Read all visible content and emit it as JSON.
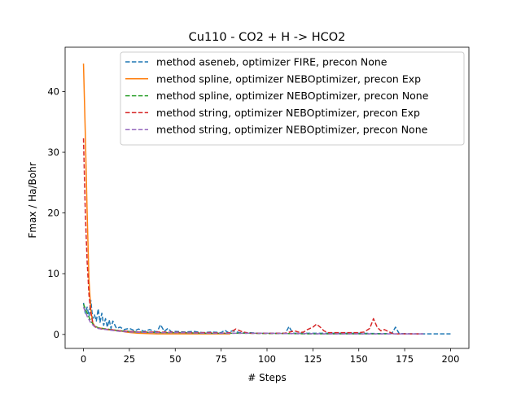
{
  "chart_data": {
    "type": "line",
    "title": "Cu110 - CO2 + H -> HCO2",
    "xlabel": "# Steps",
    "ylabel": "Fmax / Ha/Bohr",
    "xlim": [
      -10,
      210
    ],
    "ylim": [
      -2.3,
      47.3
    ],
    "x_ticks": [
      0,
      25,
      50,
      75,
      100,
      125,
      150,
      175,
      200
    ],
    "y_ticks": [
      0,
      10,
      20,
      30,
      40
    ],
    "legend_position": "top-right",
    "grid": false,
    "series": [
      {
        "name": "method aseneb, optimizer FIRE, precon None",
        "color": "#1f77b4",
        "dash": true,
        "points": [
          [
            0,
            5.2
          ],
          [
            1,
            3.5
          ],
          [
            2,
            4.5
          ],
          [
            3,
            3.0
          ],
          [
            4,
            5.6
          ],
          [
            5,
            2.6
          ],
          [
            6,
            3.2
          ],
          [
            7,
            2.2
          ],
          [
            8,
            4.2
          ],
          [
            9,
            2.0
          ],
          [
            10,
            3.5
          ],
          [
            11,
            1.5
          ],
          [
            12,
            2.6
          ],
          [
            13,
            1.2
          ],
          [
            14,
            2.4
          ],
          [
            15,
            1.0
          ],
          [
            16,
            2.2
          ],
          [
            18,
            1.0
          ],
          [
            20,
            1.2
          ],
          [
            22,
            0.8
          ],
          [
            25,
            1.0
          ],
          [
            28,
            0.6
          ],
          [
            30,
            0.9
          ],
          [
            33,
            0.5
          ],
          [
            36,
            0.8
          ],
          [
            40,
            0.4
          ],
          [
            42,
            1.6
          ],
          [
            44,
            0.5
          ],
          [
            46,
            1.0
          ],
          [
            48,
            0.4
          ],
          [
            50,
            0.5
          ],
          [
            55,
            0.4
          ],
          [
            60,
            0.5
          ],
          [
            65,
            0.3
          ],
          [
            70,
            0.4
          ],
          [
            75,
            0.3
          ],
          [
            77,
            0.7
          ],
          [
            79,
            0.3
          ],
          [
            81,
            0.6
          ],
          [
            85,
            0.3
          ],
          [
            90,
            0.3
          ],
          [
            95,
            0.2
          ],
          [
            100,
            0.2
          ],
          [
            105,
            0.2
          ],
          [
            110,
            0.2
          ],
          [
            112,
            1.3
          ],
          [
            114,
            0.2
          ],
          [
            120,
            0.2
          ],
          [
            130,
            0.2
          ],
          [
            140,
            0.2
          ],
          [
            150,
            0.2
          ],
          [
            160,
            0.15
          ],
          [
            168,
            0.15
          ],
          [
            170,
            1.2
          ],
          [
            172,
            0.15
          ],
          [
            180,
            0.1
          ],
          [
            190,
            0.1
          ],
          [
            200,
            0.1
          ]
        ]
      },
      {
        "name": "method spline, optimizer NEBOptimizer, precon Exp",
        "color": "#ff7f0e",
        "dash": false,
        "points": [
          [
            0,
            44.6
          ],
          [
            1,
            33.0
          ],
          [
            2,
            20.0
          ],
          [
            3,
            9.0
          ],
          [
            4,
            4.0
          ],
          [
            5,
            2.0
          ],
          [
            6,
            1.4
          ],
          [
            8,
            1.1
          ],
          [
            10,
            1.0
          ],
          [
            13,
            0.8
          ],
          [
            16,
            0.7
          ],
          [
            20,
            0.6
          ],
          [
            23,
            0.4
          ],
          [
            26,
            0.3
          ],
          [
            30,
            0.2
          ],
          [
            35,
            0.15
          ],
          [
            40,
            0.1
          ],
          [
            45,
            0.1
          ],
          [
            50,
            0.1
          ],
          [
            60,
            0.1
          ],
          [
            70,
            0.1
          ],
          [
            80,
            0.1
          ]
        ]
      },
      {
        "name": "method spline, optimizer NEBOptimizer, precon None",
        "color": "#2ca02c",
        "dash": true,
        "points": [
          [
            0,
            5.0
          ],
          [
            2,
            3.5
          ],
          [
            4,
            2.2
          ],
          [
            6,
            1.4
          ],
          [
            8,
            1.1
          ],
          [
            10,
            1.0
          ],
          [
            15,
            0.8
          ],
          [
            20,
            0.6
          ],
          [
            25,
            0.5
          ],
          [
            30,
            0.4
          ],
          [
            40,
            0.3
          ],
          [
            50,
            0.3
          ],
          [
            60,
            0.25
          ],
          [
            70,
            0.2
          ],
          [
            80,
            0.2
          ],
          [
            90,
            0.2
          ],
          [
            100,
            0.15
          ],
          [
            110,
            0.15
          ],
          [
            120,
            0.1
          ],
          [
            130,
            0.1
          ],
          [
            140,
            0.1
          ],
          [
            150,
            0.1
          ],
          [
            160,
            0.1
          ],
          [
            165,
            0.1
          ]
        ]
      },
      {
        "name": "method string, optimizer NEBOptimizer, precon Exp",
        "color": "#d62728",
        "dash": true,
        "points": [
          [
            0,
            32.3
          ],
          [
            1,
            20.0
          ],
          [
            2,
            12.0
          ],
          [
            3,
            6.5
          ],
          [
            4,
            3.5
          ],
          [
            5,
            2.0
          ],
          [
            6,
            1.3
          ],
          [
            8,
            1.0
          ],
          [
            10,
            0.9
          ],
          [
            15,
            0.8
          ],
          [
            20,
            0.6
          ],
          [
            25,
            0.5
          ],
          [
            30,
            0.4
          ],
          [
            40,
            0.4
          ],
          [
            50,
            0.35
          ],
          [
            60,
            0.3
          ],
          [
            70,
            0.3
          ],
          [
            75,
            0.2
          ],
          [
            80,
            0.3
          ],
          [
            83,
            0.9
          ],
          [
            86,
            0.5
          ],
          [
            90,
            0.2
          ],
          [
            95,
            0.2
          ],
          [
            100,
            0.2
          ],
          [
            105,
            0.2
          ],
          [
            110,
            0.2
          ],
          [
            115,
            0.6
          ],
          [
            118,
            0.3
          ],
          [
            120,
            0.4
          ],
          [
            122,
            0.8
          ],
          [
            125,
            1.2
          ],
          [
            127,
            1.7
          ],
          [
            129,
            1.2
          ],
          [
            131,
            0.6
          ],
          [
            133,
            0.3
          ],
          [
            135,
            0.3
          ],
          [
            140,
            0.3
          ],
          [
            145,
            0.3
          ],
          [
            150,
            0.3
          ],
          [
            153,
            0.4
          ],
          [
            156,
            1.0
          ],
          [
            158,
            2.6
          ],
          [
            160,
            1.2
          ],
          [
            162,
            0.6
          ],
          [
            164,
            0.8
          ],
          [
            166,
            0.5
          ],
          [
            168,
            0.2
          ],
          [
            170,
            0.1
          ],
          [
            175,
            0.1
          ],
          [
            180,
            0.1
          ],
          [
            185,
            0.1
          ]
        ]
      },
      {
        "name": "method string, optimizer NEBOptimizer, precon None",
        "color": "#9467bd",
        "dash": true,
        "points": [
          [
            0,
            4.5
          ],
          [
            2,
            3.0
          ],
          [
            4,
            1.9
          ],
          [
            6,
            1.3
          ],
          [
            8,
            1.0
          ],
          [
            10,
            0.9
          ],
          [
            15,
            0.7
          ],
          [
            20,
            0.5
          ],
          [
            25,
            0.4
          ],
          [
            30,
            0.35
          ],
          [
            40,
            0.3
          ],
          [
            50,
            0.3
          ],
          [
            60,
            0.25
          ],
          [
            70,
            0.2
          ],
          [
            80,
            0.2
          ],
          [
            90,
            0.2
          ],
          [
            100,
            0.2
          ],
          [
            110,
            0.15
          ],
          [
            120,
            0.15
          ],
          [
            130,
            0.1
          ],
          [
            140,
            0.1
          ],
          [
            150,
            0.1
          ],
          [
            160,
            0.1
          ],
          [
            170,
            0.1
          ],
          [
            180,
            0.1
          ],
          [
            185,
            0.1
          ]
        ]
      }
    ]
  }
}
